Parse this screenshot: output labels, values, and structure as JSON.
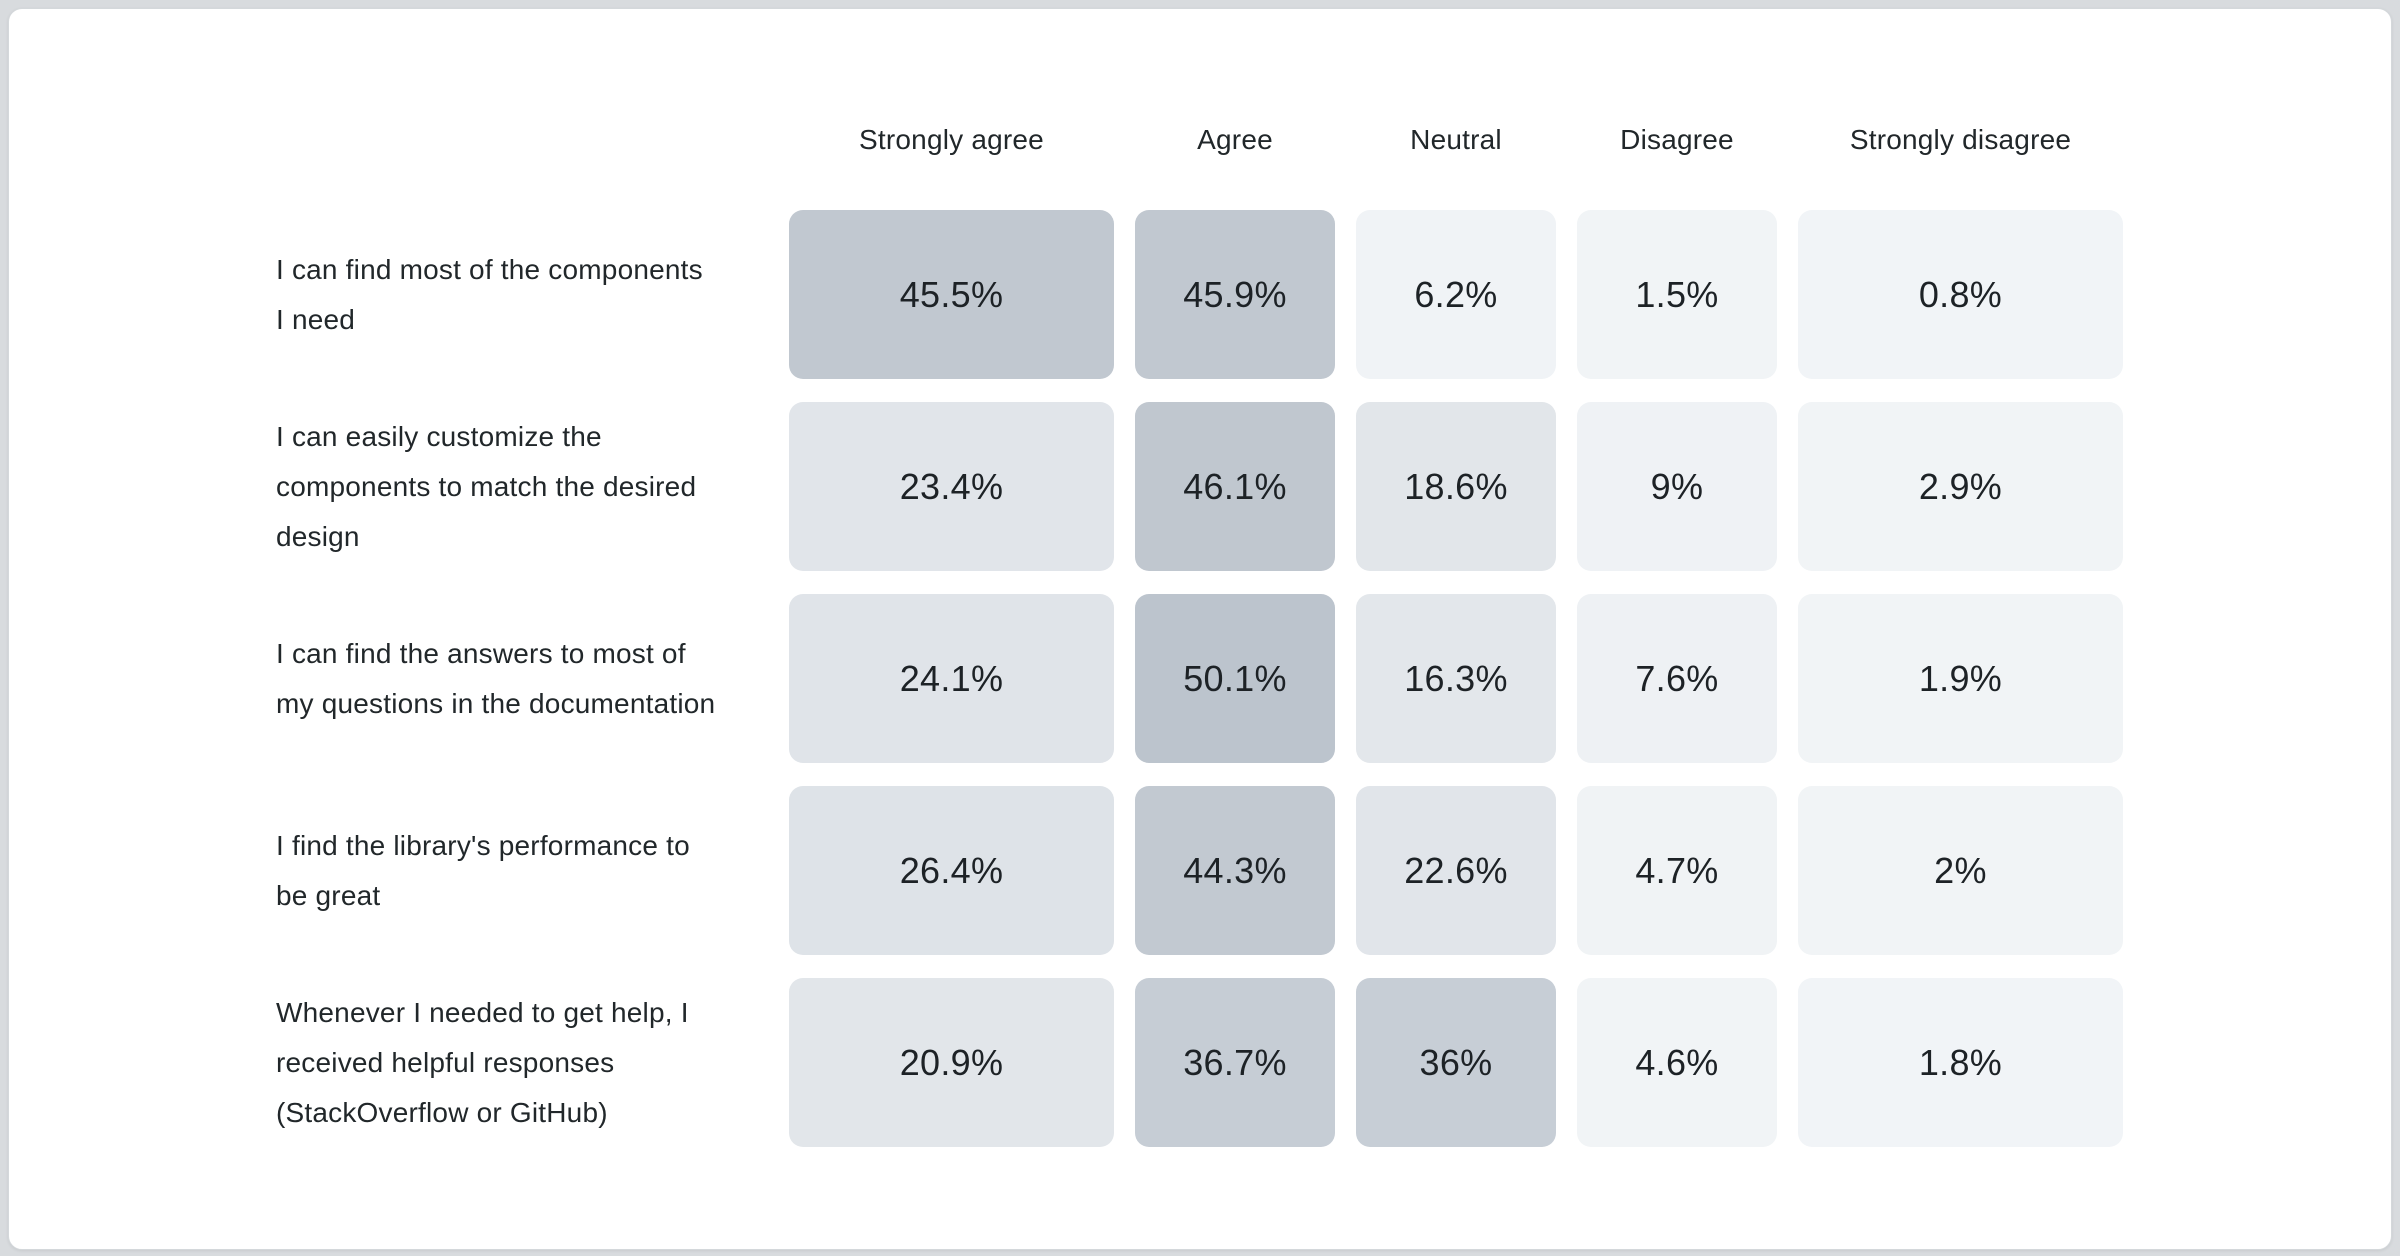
{
  "page": {
    "background": "#d8dbde",
    "card_background": "#ffffff",
    "card_border": "#d4d8db",
    "text_color": "#21272a"
  },
  "chart_data": {
    "type": "heatmap",
    "title": "",
    "value_format": "percent",
    "legend": "none",
    "columns": [
      "Strongly agree",
      "Agree",
      "Neutral",
      "Disagree",
      "Strongly disagree"
    ],
    "color_scale": {
      "min_value": 0,
      "max_value": 50.1,
      "min_color": "#f2f5f7",
      "max_color": "#bcc4cd"
    },
    "rows": [
      {
        "label": "I can find most of the components I need",
        "values": [
          45.5,
          45.9,
          6.2,
          1.5,
          0.8
        ],
        "cells": [
          {
            "text": "45.5%",
            "color": "#c1c8d0"
          },
          {
            "text": "45.9%",
            "color": "#c1c8d0"
          },
          {
            "text": "6.2%",
            "color": "#f0f3f6"
          },
          {
            "text": "1.5%",
            "color": "#f1f4f6"
          },
          {
            "text": "0.8%",
            "color": "#f1f4f7"
          }
        ]
      },
      {
        "label": "I can easily customize the components to match the desired design",
        "values": [
          23.4,
          46.1,
          18.6,
          9,
          2.9
        ],
        "cells": [
          {
            "text": "23.4%",
            "color": "#e1e5ea"
          },
          {
            "text": "46.1%",
            "color": "#c0c7cf"
          },
          {
            "text": "18.6%",
            "color": "#e2e6ea"
          },
          {
            "text": "9%",
            "color": "#eff2f5"
          },
          {
            "text": "2.9%",
            "color": "#f1f4f6"
          }
        ]
      },
      {
        "label": "I can find the answers to most of my questions in the documentation",
        "values": [
          24.1,
          50.1,
          16.3,
          7.6,
          1.9
        ],
        "cells": [
          {
            "text": "24.1%",
            "color": "#e0e4e9"
          },
          {
            "text": "50.1%",
            "color": "#bcc4cd"
          },
          {
            "text": "16.3%",
            "color": "#e3e7eb"
          },
          {
            "text": "7.6%",
            "color": "#eef1f4"
          },
          {
            "text": "1.9%",
            "color": "#f1f4f6"
          }
        ]
      },
      {
        "label": "I find the library's performance to be great",
        "values": [
          26.4,
          44.3,
          22.6,
          4.7,
          2
        ],
        "cells": [
          {
            "text": "26.4%",
            "color": "#dee3e8"
          },
          {
            "text": "44.3%",
            "color": "#c2c9d1"
          },
          {
            "text": "22.6%",
            "color": "#e1e5ea"
          },
          {
            "text": "4.7%",
            "color": "#f0f3f5"
          },
          {
            "text": "2%",
            "color": "#f1f4f6"
          }
        ]
      },
      {
        "label": "Whenever I needed to get help, I received helpful responses (StackOverflow or GitHub)",
        "values": [
          20.9,
          36.7,
          36,
          4.6,
          1.8
        ],
        "cells": [
          {
            "text": "20.9%",
            "color": "#e2e6ea"
          },
          {
            "text": "36.7%",
            "color": "#c6cdd5"
          },
          {
            "text": "36%",
            "color": "#c7ced6"
          },
          {
            "text": "4.6%",
            "color": "#f1f4f6"
          },
          {
            "text": "1.8%",
            "color": "#f1f4f7"
          }
        ]
      }
    ]
  }
}
